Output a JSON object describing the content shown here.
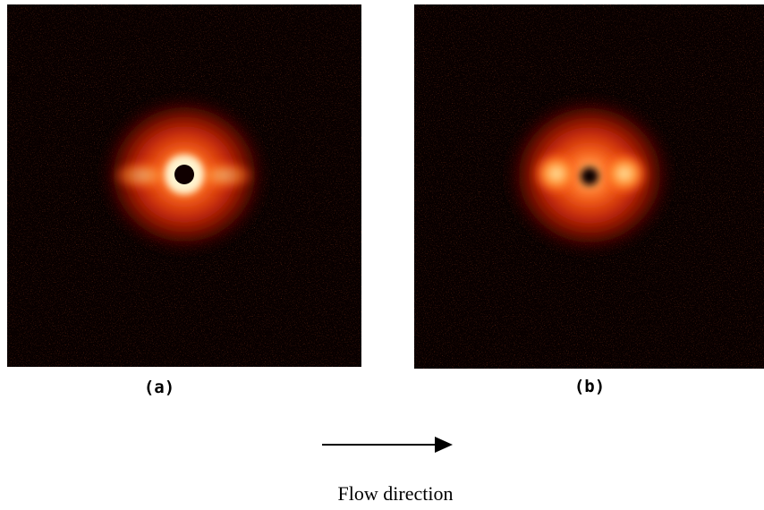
{
  "panels": [
    {
      "label": "(a)"
    },
    {
      "label": "(b)"
    }
  ],
  "caption": "Flow direction"
}
